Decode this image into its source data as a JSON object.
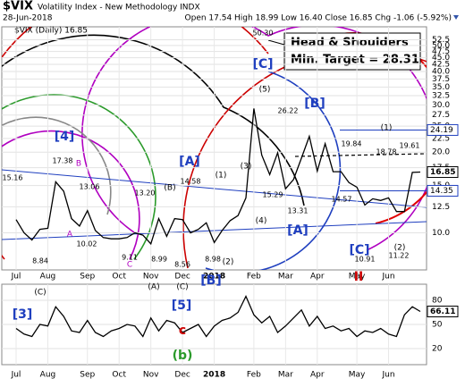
{
  "header": {
    "symbol": "$VIX",
    "name": "Volatility Index - New Methodology INDX",
    "date": "28-Jun-2018",
    "quote": "Open 17.54 High 18.99 Low 16.40 Close 16.85 Chg -1.06 (-5.92%)",
    "legend": "$VIX (Daily) 16.85"
  },
  "chart_data": [
    {
      "type": "line",
      "log": true,
      "grid": true,
      "categories": [
        "Jul",
        null,
        null,
        null,
        "Aug",
        null,
        null,
        null,
        null,
        "Sep",
        null,
        null,
        null,
        "Oct",
        null,
        null,
        null,
        "Nov",
        null,
        null,
        null,
        "Dec",
        null,
        null,
        null,
        "2018",
        null,
        null,
        null,
        null,
        "Feb",
        null,
        null,
        null,
        "Mar",
        null,
        null,
        null,
        "Apr",
        null,
        null,
        null,
        null,
        "May",
        null,
        null,
        null,
        "Jun",
        null,
        null,
        null,
        null
      ],
      "series": [
        {
          "name": "$VIX",
          "color": "#000000",
          "values": [
            11.2,
            10.0,
            9.4,
            10.3,
            10.4,
            15.5,
            14.3,
            11.3,
            10.6,
            12.1,
            10.2,
            9.6,
            9.5,
            9.5,
            9.6,
            10.0,
            9.8,
            9.1,
            11.3,
            9.7,
            11.3,
            11.2,
            10.0,
            10.3,
            10.9,
            9.2,
            10.2,
            11.1,
            11.6,
            13.5,
            29.1,
            19.5,
            16.5,
            19.9,
            14.6,
            15.8,
            19.0,
            22.9,
            17.0,
            21.5,
            16.9,
            16.9,
            15.4,
            14.8,
            12.7,
            13.4,
            13.2,
            13.5,
            12.0,
            12.0,
            16.8,
            16.85
          ]
        }
      ],
      "reference_lines": [
        {
          "value": 24.19,
          "color": "#1f3fbf"
        },
        {
          "value": 14.35,
          "color": "#1f3fbf"
        }
      ],
      "ylim": [
        7.27,
        58.7
      ],
      "yticks": [
        {
          "value": 52.5,
          "label": "52.5"
        },
        {
          "value": 50,
          "label": "50.0"
        },
        {
          "value": 47.5,
          "label": "47.5"
        },
        {
          "value": 45,
          "label": "45.0"
        },
        {
          "value": 42.5,
          "label": "42.5"
        },
        {
          "value": 40,
          "label": "40.0"
        },
        {
          "value": 37.5,
          "label": "37.5"
        },
        {
          "value": 35,
          "label": "35.0"
        },
        {
          "value": 32.5,
          "label": "32.5"
        },
        {
          "value": 30,
          "label": "30.0"
        },
        {
          "value": 27.5,
          "label": "27.5"
        },
        {
          "value": 25,
          "label": "25.0"
        },
        {
          "value": 22.5,
          "label": "22.5"
        },
        {
          "value": 20,
          "label": "20.0"
        },
        {
          "value": 17.5,
          "label": "17.5"
        },
        {
          "value": 15,
          "label": "15.0"
        },
        {
          "value": 12.5,
          "label": "12.5"
        },
        {
          "value": 10,
          "label": "10.0"
        }
      ],
      "annotations": [
        "[4]",
        "B",
        "A",
        "C",
        "(A)",
        "(C)",
        "[B]",
        "(2)",
        "[A]",
        "(B)",
        "(1)",
        "[C]",
        "(5)",
        "(3)",
        "(4)",
        "[B]",
        "[A]",
        "(1)",
        "[C]",
        "(2)",
        "II",
        "15.16",
        "17.38",
        "13.06",
        "10.02",
        "8.84",
        "9.11",
        "8.99",
        "8.56",
        "8.98",
        "13.20",
        "14.58",
        "50.30",
        "26.22",
        "15.29",
        "13.31",
        "19.84",
        "14.57",
        "18.78",
        "19.61",
        "10.91",
        "11.22"
      ],
      "callout": [
        "Head & Shoulders",
        "Min. Target = 28.31"
      ]
    },
    {
      "type": "line",
      "grid": true,
      "categories": [
        "Jul",
        null,
        null,
        null,
        "Aug",
        null,
        null,
        null,
        null,
        "Sep",
        null,
        null,
        null,
        "Oct",
        null,
        null,
        null,
        "Nov",
        null,
        null,
        null,
        "Dec",
        null,
        null,
        null,
        "2018",
        null,
        null,
        null,
        null,
        "Feb",
        null,
        null,
        null,
        "Mar",
        null,
        null,
        null,
        "Apr",
        null,
        null,
        null,
        null,
        "May",
        null,
        null,
        null,
        "Jun",
        null,
        null,
        null,
        null
      ],
      "series": [
        {
          "name": "RSI",
          "color": "#000000",
          "values": [
            45,
            38,
            35,
            50,
            48,
            72,
            60,
            42,
            40,
            55,
            40,
            35,
            42,
            45,
            50,
            48,
            35,
            58,
            42,
            55,
            52,
            40,
            45,
            50,
            35,
            48,
            55,
            58,
            65,
            85,
            62,
            52,
            60,
            40,
            48,
            58,
            68,
            48,
            60,
            45,
            48,
            42,
            45,
            35,
            42,
            40,
            45,
            38,
            35,
            62,
            72,
            66.11
          ]
        }
      ],
      "ylim": [
        0,
        100
      ],
      "yticks": [
        20,
        50,
        80
      ],
      "annotations": [
        "(C)",
        "[3]",
        "[5]",
        "c",
        "(b)"
      ]
    }
  ]
}
